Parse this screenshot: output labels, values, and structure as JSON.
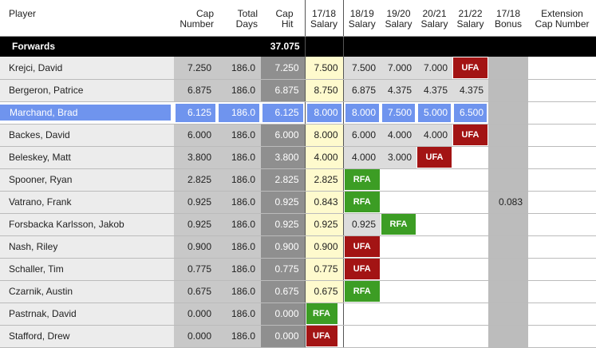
{
  "headers": {
    "player": "Player",
    "cap_number": [
      "Cap",
      "Number"
    ],
    "total_days": [
      "Total",
      "Days"
    ],
    "cap_hit": [
      "Cap",
      "Hit"
    ],
    "s1718": [
      "17/18",
      "Salary"
    ],
    "s1819": [
      "18/19",
      "Salary"
    ],
    "s1920": [
      "19/20",
      "Salary"
    ],
    "s2021": [
      "20/21",
      "Salary"
    ],
    "s2122": [
      "21/22",
      "Salary"
    ],
    "bonus": [
      "17/18",
      "Bonus"
    ],
    "extension": [
      "Extension",
      "Cap Number"
    ]
  },
  "section": {
    "label": "Forwards",
    "total": "37.075"
  },
  "rows": [
    {
      "player": "Krejci, David",
      "cap": "7.250",
      "days": "186.0",
      "hit": "7.250",
      "s1718": "7.500",
      "s1819": "7.500",
      "s1920": "7.000",
      "s2021": "7.000",
      "s2122": "UFA",
      "bonus": "",
      "highlight": false
    },
    {
      "player": "Bergeron, Patrice",
      "cap": "6.875",
      "days": "186.0",
      "hit": "6.875",
      "s1718": "8.750",
      "s1819": "6.875",
      "s1920": "4.375",
      "s2021": "4.375",
      "s2122": "4.375",
      "bonus": "",
      "highlight": false
    },
    {
      "player": "Marchand, Brad",
      "cap": "6.125",
      "days": "186.0",
      "hit": "6.125",
      "s1718": "8.000",
      "s1819": "8.000",
      "s1920": "7.500",
      "s2021": "5.000",
      "s2122": "6.500",
      "bonus": "",
      "highlight": true
    },
    {
      "player": "Backes, David",
      "cap": "6.000",
      "days": "186.0",
      "hit": "6.000",
      "s1718": "8.000",
      "s1819": "6.000",
      "s1920": "4.000",
      "s2021": "4.000",
      "s2122": "UFA",
      "bonus": "",
      "highlight": false
    },
    {
      "player": "Beleskey, Matt",
      "cap": "3.800",
      "days": "186.0",
      "hit": "3.800",
      "s1718": "4.000",
      "s1819": "4.000",
      "s1920": "3.000",
      "s2021": "UFA",
      "s2122": "",
      "bonus": "",
      "highlight": false
    },
    {
      "player": "Spooner, Ryan",
      "cap": "2.825",
      "days": "186.0",
      "hit": "2.825",
      "s1718": "2.825",
      "s1819": "RFA",
      "s1920": "",
      "s2021": "",
      "s2122": "",
      "bonus": "",
      "highlight": false
    },
    {
      "player": "Vatrano, Frank",
      "cap": "0.925",
      "days": "186.0",
      "hit": "0.925",
      "s1718": "0.843",
      "s1819": "RFA",
      "s1920": "",
      "s2021": "",
      "s2122": "",
      "bonus": "0.083",
      "highlight": false
    },
    {
      "player": "Forsbacka Karlsson, Jakob",
      "cap": "0.925",
      "days": "186.0",
      "hit": "0.925",
      "s1718": "0.925",
      "s1819": "0.925",
      "s1920": "RFA",
      "s2021": "",
      "s2122": "",
      "bonus": "",
      "highlight": false
    },
    {
      "player": "Nash, Riley",
      "cap": "0.900",
      "days": "186.0",
      "hit": "0.900",
      "s1718": "0.900",
      "s1819": "UFA",
      "s1920": "",
      "s2021": "",
      "s2122": "",
      "bonus": "",
      "highlight": false
    },
    {
      "player": "Schaller, Tim",
      "cap": "0.775",
      "days": "186.0",
      "hit": "0.775",
      "s1718": "0.775",
      "s1819": "UFA",
      "s1920": "",
      "s2021": "",
      "s2122": "",
      "bonus": "",
      "highlight": false
    },
    {
      "player": "Czarnik, Austin",
      "cap": "0.675",
      "days": "186.0",
      "hit": "0.675",
      "s1718": "0.675",
      "s1819": "RFA",
      "s1920": "",
      "s2021": "",
      "s2122": "",
      "bonus": "",
      "highlight": false
    },
    {
      "player": "Pastrnak, David",
      "cap": "0.000",
      "days": "186.0",
      "hit": "0.000",
      "s1718": "RFA",
      "s1819": "",
      "s1920": "",
      "s2021": "",
      "s2122": "",
      "bonus": "",
      "highlight": false
    },
    {
      "player": "Stafford, Drew",
      "cap": "0.000",
      "days": "186.0",
      "hit": "0.000",
      "s1718": "UFA",
      "s1819": "",
      "s1920": "",
      "s2021": "",
      "s2122": "",
      "bonus": "",
      "highlight": false
    }
  ],
  "colors": {
    "ufa": "#a31414",
    "rfa": "#3c9d24",
    "highlight": "#6f94ee"
  }
}
